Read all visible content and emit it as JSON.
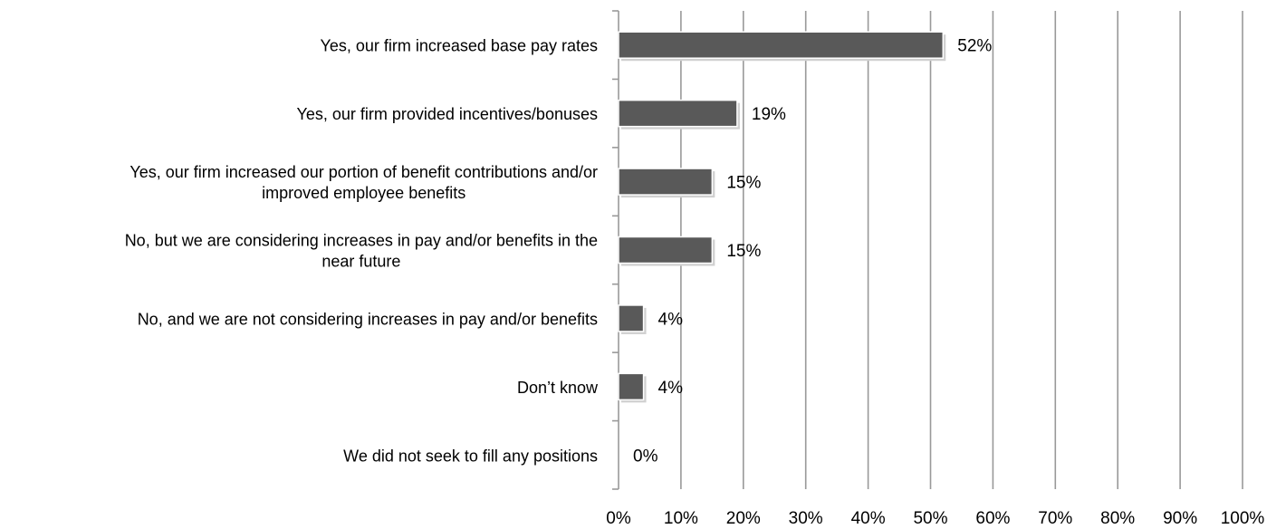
{
  "chart_data": {
    "type": "bar",
    "orientation": "horizontal",
    "title": "",
    "xlabel": "",
    "ylabel": "",
    "xlim": [
      0,
      100
    ],
    "grid": true,
    "bar_color": "#595959",
    "grid_color": "#999999",
    "categories": [
      [
        "Yes, our firm increased base pay rates"
      ],
      [
        "Yes, our firm provided incentives/bonuses"
      ],
      [
        "Yes, our firm increased our portion of benefit contributions and/or",
        "improved employee benefits"
      ],
      [
        "No, but we are considering increases in pay and/or benefits in the",
        "near future"
      ],
      [
        "No, and we are not considering increases in pay and/or benefits"
      ],
      [
        "Don’t know"
      ],
      [
        "We did not seek to fill any positions"
      ]
    ],
    "values": [
      52,
      19,
      15,
      15,
      4,
      4,
      0
    ],
    "value_labels": [
      "52%",
      "19%",
      "15%",
      "15%",
      "4%",
      "4%",
      "0%"
    ],
    "x_ticks": [
      "0%",
      "10%",
      "20%",
      "30%",
      "40%",
      "50%",
      "60%",
      "70%",
      "80%",
      "90%",
      "100%"
    ]
  }
}
